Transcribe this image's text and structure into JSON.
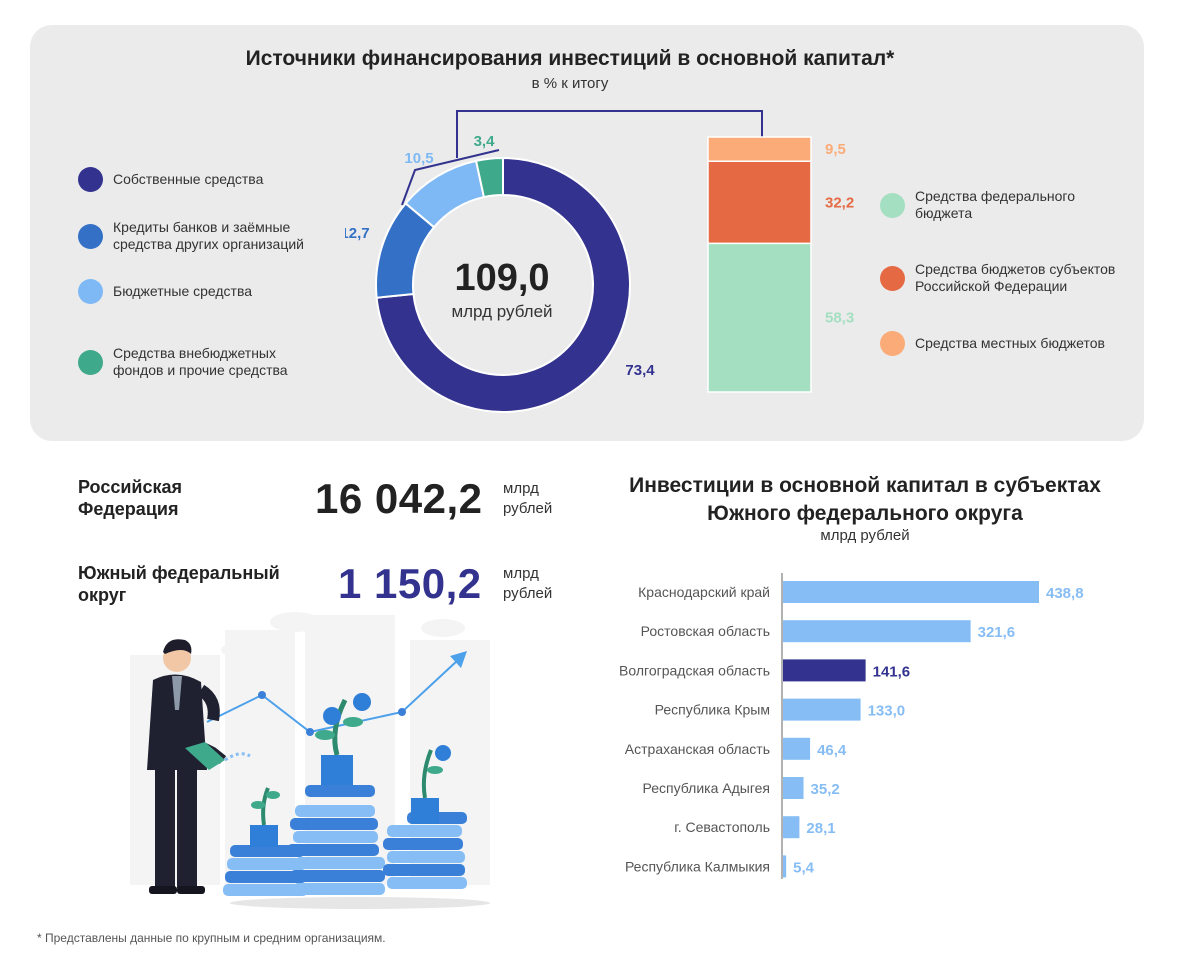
{
  "top": {
    "title": "Источники финансирования инвестиций в основной капитал*",
    "subtitle": "в % к итогу",
    "center_value": "109,0",
    "center_unit": "млрд рублей"
  },
  "colors": {
    "own": "#33338f",
    "credits": "#3471c6",
    "budget": "#7fb9f5",
    "extra": "#3fa98b",
    "federal": "#a3dfc0",
    "regional": "#e56a43",
    "local": "#fbab77",
    "bar_default": "#86bdf5",
    "bar_highlight": "#33338f"
  },
  "left_legend": [
    {
      "label": "Собственные средства",
      "color_key": "own"
    },
    {
      "label": "Кредиты банков и заёмные средства других организаций",
      "color_key": "credits"
    },
    {
      "label": "Бюджетные средства",
      "color_key": "budget"
    },
    {
      "label": "Средства внебюджетных фондов и прочие средства",
      "color_key": "extra"
    }
  ],
  "right_legend": [
    {
      "label": "Средства федерального бюджета",
      "color_key": "federal"
    },
    {
      "label": "Средства бюджетов субъектов Российской Федерации",
      "color_key": "regional"
    },
    {
      "label": "Средства местных бюджетов",
      "color_key": "local"
    }
  ],
  "stats": {
    "rf_label": "Российская Федерация",
    "rf_value": "16 042,2",
    "rf_unit": "млрд рублей",
    "ufo_label": "Южный федеральный округ",
    "ufo_value": "1 150,2",
    "ufo_unit": "млрд рублей"
  },
  "bar_section": {
    "title": "Инвестиции в основной капитал в субъектах Южного федерального округа",
    "subtitle": "млрд рублей"
  },
  "footnote": "* Представлены данные по крупным и средним организациям.",
  "chart_data": [
    {
      "type": "pie",
      "style": "donut",
      "categories": [
        "Собственные средства",
        "Кредиты банков и заёмные средства других организаций",
        "Бюджетные средства",
        "Средства внебюджетных фондов и прочие средства"
      ],
      "values": [
        73.4,
        12.7,
        10.5,
        3.4
      ],
      "labels": [
        "73,4",
        "12,7",
        "10,5",
        "3,4"
      ],
      "colors": [
        "#33338f",
        "#3471c6",
        "#7fb9f5",
        "#3fa98b"
      ]
    },
    {
      "type": "bar",
      "style": "stacked-100",
      "categories": [
        "Средства федерального бюджета",
        "Средства бюджетов субъектов Российской Федерации",
        "Средства местных бюджетов"
      ],
      "values": [
        58.3,
        32.2,
        9.5
      ],
      "labels": [
        "58,3",
        "32,2",
        "9,5"
      ],
      "colors": [
        "#a3dfc0",
        "#e56a43",
        "#fbab77"
      ]
    },
    {
      "type": "bar",
      "orientation": "horizontal",
      "categories": [
        "Краснодарский край",
        "Ростовская область",
        "Волгоградская область",
        "Республика Крым",
        "Астраханская область",
        "Республика Адыгея",
        "г. Севастополь",
        "Республика Калмыкия"
      ],
      "values": [
        438.8,
        321.6,
        141.6,
        133.0,
        46.4,
        35.2,
        28.1,
        5.4
      ],
      "labels": [
        "438,8",
        "321,6",
        "141,6",
        "133,0",
        "46,4",
        "35,2",
        "28,1",
        "5,4"
      ],
      "highlight": "Волгоградская область"
    }
  ]
}
